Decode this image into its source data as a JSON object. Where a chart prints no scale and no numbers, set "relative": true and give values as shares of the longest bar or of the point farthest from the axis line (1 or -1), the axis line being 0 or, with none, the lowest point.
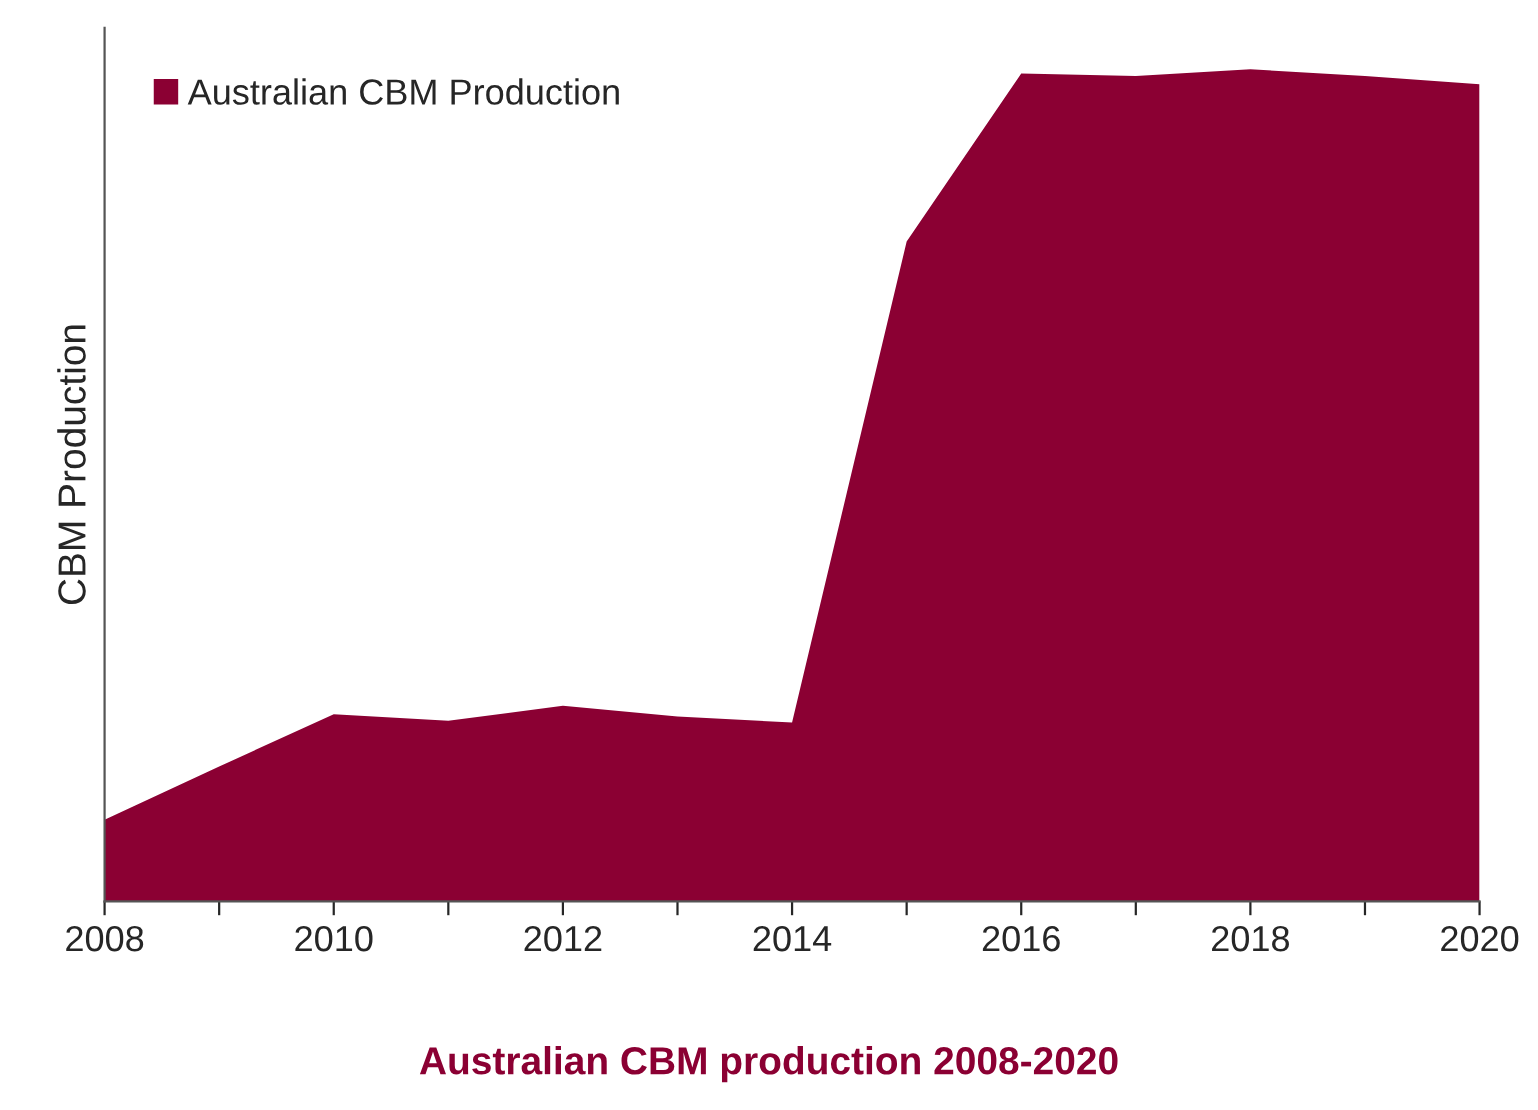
{
  "chart_data": {
    "type": "area",
    "relative": true,
    "ylabel": "CBM Production",
    "x": [
      2008,
      2009,
      2010,
      2011,
      2012,
      2013,
      2014,
      2015,
      2016,
      2017,
      2018,
      2019,
      2020
    ],
    "series": [
      {
        "name": "Australian CBM Production",
        "color": "#8b0033",
        "values": [
          0.098,
          0.162,
          0.225,
          0.217,
          0.235,
          0.222,
          0.215,
          0.793,
          0.995,
          0.992,
          1,
          0.992,
          0.982
        ]
      }
    ],
    "xlim": [
      2008,
      2020
    ],
    "xticks": [
      2008,
      {
        "value": 2009,
        "label": null
      },
      2010,
      {
        "value": 2011,
        "label": null
      },
      2012,
      {
        "value": 2013,
        "label": null
      },
      2014,
      {
        "value": 2015,
        "label": null
      },
      2016,
      {
        "value": 2017,
        "label": null
      },
      2018,
      {
        "value": 2019,
        "label": null
      },
      2020
    ],
    "legend": "top left",
    "grid": false,
    "annotations": [
      "Australian CBM production 2008-2020"
    ]
  }
}
